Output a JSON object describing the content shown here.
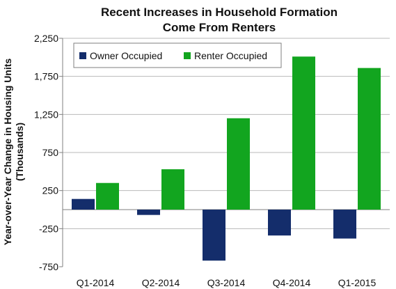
{
  "chart_data": {
    "type": "bar",
    "title_lines": [
      "Recent Increases in Household Formation",
      "Come From Renters"
    ],
    "ylabel_lines": [
      "Year-over-Year Change in Housing Units",
      "(Thousands)"
    ],
    "xlabel": "",
    "categories": [
      "Q1-2014",
      "Q2-2014",
      "Q3-2014",
      "Q4-2014",
      "Q1-2015"
    ],
    "series": [
      {
        "name": "Owner Occupied",
        "color": "#142d6b",
        "values": [
          140,
          -70,
          -670,
          -340,
          -380
        ]
      },
      {
        "name": "Renter Occupied",
        "color": "#12a51f",
        "values": [
          350,
          530,
          1200,
          2010,
          1860
        ]
      }
    ],
    "ylim": [
      -750,
      2250
    ],
    "yticks": [
      -750,
      -250,
      250,
      750,
      1250,
      1750,
      2250
    ],
    "ytick_labels": [
      "-750",
      "-250",
      "250",
      "750",
      "1,250",
      "1,750",
      "2,250"
    ],
    "grid": true,
    "legend_position": "top-left"
  }
}
